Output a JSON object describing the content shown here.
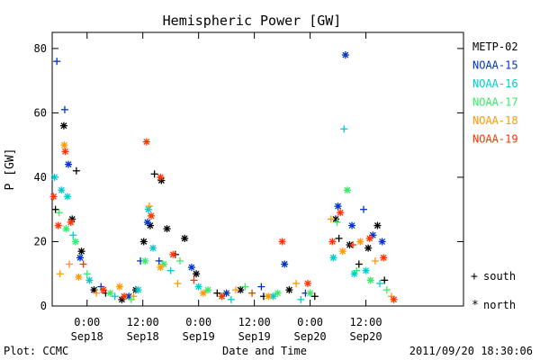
{
  "chart_data": {
    "type": "scatter",
    "title": "Hemispheric Power [GW]",
    "ylabel": "P [GW]",
    "xlabel": "Date and Time",
    "ylim": [
      0,
      85
    ],
    "yticks": [
      0,
      20,
      40,
      60,
      80
    ],
    "xlim": [
      -7.5,
      81
    ],
    "xticks": [
      {
        "x": 0,
        "time": "0:00",
        "date": "Sep18"
      },
      {
        "x": 12,
        "time": "12:00",
        "date": "Sep18"
      },
      {
        "x": 24,
        "time": "0:00",
        "date": "Sep19"
      },
      {
        "x": 36,
        "time": "12:00",
        "date": "Sep19"
      },
      {
        "x": 48,
        "time": "0:00",
        "date": "Sep20"
      },
      {
        "x": 60,
        "time": "12:00",
        "date": "Sep20"
      }
    ],
    "x_unit_note": "x = hours from 2011-09-18 00:00 UT",
    "legend_placement": "right",
    "marker_legend": {
      "south_symbol": "+",
      "south_label": "south",
      "north_symbol": "*",
      "north_label": "north"
    },
    "series": [
      {
        "name": "METP-02",
        "color": "#000000",
        "points": [
          {
            "x": -6.8,
            "y": 30,
            "h": "south"
          },
          {
            "x": -5.0,
            "y": 56,
            "h": "north"
          },
          {
            "x": -3.2,
            "y": 27,
            "h": "north"
          },
          {
            "x": -2.3,
            "y": 42,
            "h": "south"
          },
          {
            "x": -1.2,
            "y": 17,
            "h": "north"
          },
          {
            "x": 1.5,
            "y": 5,
            "h": "north"
          },
          {
            "x": 4.0,
            "y": 4,
            "h": "south"
          },
          {
            "x": 7.5,
            "y": 2,
            "h": "north"
          },
          {
            "x": 10.5,
            "y": 5,
            "h": "north"
          },
          {
            "x": 12.2,
            "y": 20,
            "h": "north"
          },
          {
            "x": 13.6,
            "y": 25,
            "h": "north"
          },
          {
            "x": 14.5,
            "y": 41,
            "h": "south"
          },
          {
            "x": 16.0,
            "y": 39,
            "h": "north"
          },
          {
            "x": 17.2,
            "y": 24,
            "h": "north"
          },
          {
            "x": 19.0,
            "y": 16,
            "h": "south"
          },
          {
            "x": 21.0,
            "y": 21,
            "h": "north"
          },
          {
            "x": 23.5,
            "y": 10,
            "h": "north"
          },
          {
            "x": 28.0,
            "y": 4,
            "h": "south"
          },
          {
            "x": 33.0,
            "y": 5,
            "h": "north"
          },
          {
            "x": 38.0,
            "y": 3,
            "h": "south"
          },
          {
            "x": 43.5,
            "y": 5,
            "h": "north"
          },
          {
            "x": 49.0,
            "y": 3,
            "h": "south"
          },
          {
            "x": 53.5,
            "y": 27,
            "h": "north"
          },
          {
            "x": 54.2,
            "y": 21,
            "h": "south"
          },
          {
            "x": 56.5,
            "y": 19,
            "h": "north"
          },
          {
            "x": 58.5,
            "y": 13,
            "h": "south"
          },
          {
            "x": 60.5,
            "y": 18,
            "h": "north"
          },
          {
            "x": 62.5,
            "y": 25,
            "h": "north"
          },
          {
            "x": 64.0,
            "y": 8,
            "h": "south"
          }
        ]
      },
      {
        "name": "NOAA-15",
        "color": "#0033cc",
        "points": [
          {
            "x": -6.5,
            "y": 76,
            "h": "south"
          },
          {
            "x": -4.8,
            "y": 61,
            "h": "south"
          },
          {
            "x": -4.0,
            "y": 44,
            "h": "north"
          },
          {
            "x": -1.5,
            "y": 15,
            "h": "north"
          },
          {
            "x": 3.0,
            "y": 6,
            "h": "south"
          },
          {
            "x": 9.0,
            "y": 3,
            "h": "north"
          },
          {
            "x": 11.5,
            "y": 14,
            "h": "south"
          },
          {
            "x": 13.0,
            "y": 26,
            "h": "north"
          },
          {
            "x": 15.5,
            "y": 14,
            "h": "south"
          },
          {
            "x": 22.5,
            "y": 12,
            "h": "north"
          },
          {
            "x": 30.0,
            "y": 4,
            "h": "north"
          },
          {
            "x": 37.5,
            "y": 6,
            "h": "south"
          },
          {
            "x": 42.5,
            "y": 13,
            "h": "north"
          },
          {
            "x": 47.0,
            "y": 4,
            "h": "south"
          },
          {
            "x": 54.0,
            "y": 31,
            "h": "north"
          },
          {
            "x": 55.6,
            "y": 78,
            "h": "north"
          },
          {
            "x": 57.0,
            "y": 25,
            "h": "north"
          },
          {
            "x": 59.5,
            "y": 30,
            "h": "south"
          },
          {
            "x": 61.5,
            "y": 22,
            "h": "north"
          },
          {
            "x": 63.5,
            "y": 20,
            "h": "north"
          }
        ]
      },
      {
        "name": "NOAA-16",
        "color": "#00cccc",
        "points": [
          {
            "x": -7.0,
            "y": 40,
            "h": "north"
          },
          {
            "x": -5.5,
            "y": 36,
            "h": "north"
          },
          {
            "x": -4.2,
            "y": 34,
            "h": "north"
          },
          {
            "x": -3.0,
            "y": 22,
            "h": "south"
          },
          {
            "x": 0.5,
            "y": 8,
            "h": "north"
          },
          {
            "x": 6.0,
            "y": 3,
            "h": "south"
          },
          {
            "x": 11.0,
            "y": 5,
            "h": "north"
          },
          {
            "x": 13.2,
            "y": 30,
            "h": "north"
          },
          {
            "x": 14.2,
            "y": 18,
            "h": "north"
          },
          {
            "x": 18.0,
            "y": 11,
            "h": "south"
          },
          {
            "x": 24.0,
            "y": 6,
            "h": "north"
          },
          {
            "x": 31.0,
            "y": 2,
            "h": "south"
          },
          {
            "x": 40.0,
            "y": 3,
            "h": "north"
          },
          {
            "x": 46.0,
            "y": 2,
            "h": "south"
          },
          {
            "x": 53.0,
            "y": 15,
            "h": "north"
          },
          {
            "x": 55.3,
            "y": 55,
            "h": "south"
          },
          {
            "x": 57.5,
            "y": 10,
            "h": "north"
          },
          {
            "x": 60.0,
            "y": 11,
            "h": "north"
          },
          {
            "x": 63.0,
            "y": 7,
            "h": "south"
          }
        ]
      },
      {
        "name": "NOAA-17",
        "color": "#33ee66",
        "points": [
          {
            "x": -6.0,
            "y": 29,
            "h": "south"
          },
          {
            "x": -4.5,
            "y": 24,
            "h": "north"
          },
          {
            "x": -2.5,
            "y": 20,
            "h": "north"
          },
          {
            "x": 0.0,
            "y": 10,
            "h": "south"
          },
          {
            "x": 5.0,
            "y": 4,
            "h": "north"
          },
          {
            "x": 9.5,
            "y": 2,
            "h": "south"
          },
          {
            "x": 12.5,
            "y": 14,
            "h": "north"
          },
          {
            "x": 16.5,
            "y": 13,
            "h": "north"
          },
          {
            "x": 20.0,
            "y": 14,
            "h": "south"
          },
          {
            "x": 26.0,
            "y": 5,
            "h": "north"
          },
          {
            "x": 34.0,
            "y": 6,
            "h": "south"
          },
          {
            "x": 41.0,
            "y": 4,
            "h": "north"
          },
          {
            "x": 48.0,
            "y": 4,
            "h": "north"
          },
          {
            "x": 53.8,
            "y": 26,
            "h": "south"
          },
          {
            "x": 56.0,
            "y": 36,
            "h": "north"
          },
          {
            "x": 58.0,
            "y": 11,
            "h": "south"
          },
          {
            "x": 61.0,
            "y": 8,
            "h": "north"
          },
          {
            "x": 64.5,
            "y": 5,
            "h": "south"
          }
        ]
      },
      {
        "name": "NOAA-18",
        "color": "#ff9900",
        "points": [
          {
            "x": -5.8,
            "y": 10,
            "h": "south"
          },
          {
            "x": -4.9,
            "y": 50,
            "h": "north"
          },
          {
            "x": -3.8,
            "y": 13,
            "h": "south"
          },
          {
            "x": -1.8,
            "y": 9,
            "h": "north"
          },
          {
            "x": 2.0,
            "y": 4,
            "h": "south"
          },
          {
            "x": 7.0,
            "y": 6,
            "h": "north"
          },
          {
            "x": 10.0,
            "y": 3,
            "h": "south"
          },
          {
            "x": 13.4,
            "y": 31,
            "h": "south"
          },
          {
            "x": 15.8,
            "y": 12,
            "h": "north"
          },
          {
            "x": 19.5,
            "y": 7,
            "h": "south"
          },
          {
            "x": 25.0,
            "y": 4,
            "h": "north"
          },
          {
            "x": 32.0,
            "y": 5,
            "h": "south"
          },
          {
            "x": 39.0,
            "y": 3,
            "h": "north"
          },
          {
            "x": 45.0,
            "y": 7,
            "h": "south"
          },
          {
            "x": 52.5,
            "y": 27,
            "h": "south"
          },
          {
            "x": 55.0,
            "y": 17,
            "h": "north"
          },
          {
            "x": 58.8,
            "y": 20,
            "h": "north"
          },
          {
            "x": 62.0,
            "y": 14,
            "h": "south"
          },
          {
            "x": 65.5,
            "y": 3,
            "h": "south"
          }
        ]
      },
      {
        "name": "NOAA-19",
        "color": "#ff3300",
        "points": [
          {
            "x": -7.2,
            "y": 34,
            "h": "north"
          },
          {
            "x": -6.2,
            "y": 25,
            "h": "north"
          },
          {
            "x": -4.7,
            "y": 48,
            "h": "north"
          },
          {
            "x": -3.5,
            "y": 26,
            "h": "north"
          },
          {
            "x": -0.8,
            "y": 13,
            "h": "south"
          },
          {
            "x": 3.5,
            "y": 5,
            "h": "north"
          },
          {
            "x": 8.0,
            "y": 3,
            "h": "north"
          },
          {
            "x": 12.8,
            "y": 51,
            "h": "north"
          },
          {
            "x": 13.8,
            "y": 28,
            "h": "north"
          },
          {
            "x": 15.8,
            "y": 40,
            "h": "north"
          },
          {
            "x": 18.5,
            "y": 16,
            "h": "north"
          },
          {
            "x": 23.0,
            "y": 8,
            "h": "south"
          },
          {
            "x": 29.0,
            "y": 3,
            "h": "north"
          },
          {
            "x": 35.5,
            "y": 4,
            "h": "south"
          },
          {
            "x": 42.0,
            "y": 20,
            "h": "north"
          },
          {
            "x": 47.5,
            "y": 7,
            "h": "north"
          },
          {
            "x": 52.8,
            "y": 20,
            "h": "north"
          },
          {
            "x": 54.5,
            "y": 29,
            "h": "north"
          },
          {
            "x": 57.2,
            "y": 19,
            "h": "south"
          },
          {
            "x": 60.8,
            "y": 21,
            "h": "north"
          },
          {
            "x": 63.8,
            "y": 15,
            "h": "north"
          },
          {
            "x": 66.0,
            "y": 2,
            "h": "north"
          }
        ]
      }
    ]
  },
  "footer": {
    "left": "Plot: CCMC",
    "center": "Date and Time",
    "right": "2011/09/20 18:30:06"
  }
}
